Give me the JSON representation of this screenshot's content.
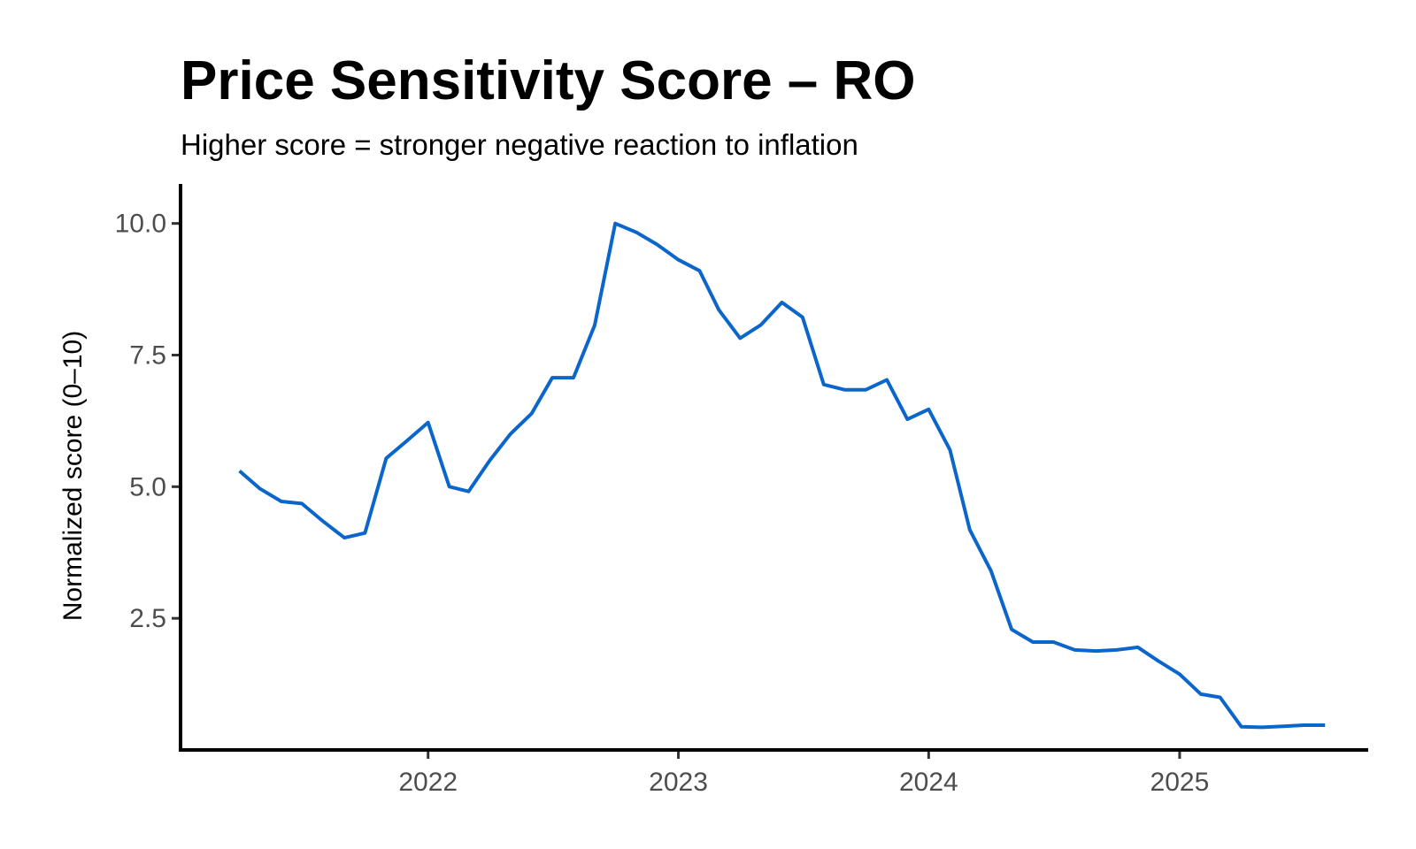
{
  "chart_data": {
    "type": "line",
    "title": "Price Sensitivity Score – RO",
    "subtitle": "Higher score = stronger negative reaction to inflation",
    "xlabel": "",
    "ylabel": "Normalized score (0–10)",
    "x_ticks": [
      "2022-01-01",
      "2023-01-01",
      "2024-01-01",
      "2025-01-01"
    ],
    "x_tick_labels": [
      "2022",
      "2023",
      "2024",
      "2025"
    ],
    "xlim": [
      "2021-01-05",
      "2025-10-03"
    ],
    "y_ticks": [
      2.5,
      5.0,
      7.5,
      10.0
    ],
    "y_tick_labels": [
      "2.5",
      "5.0",
      "7.5",
      "10.0"
    ],
    "ylim": [
      0.0,
      10.75
    ],
    "grid": false,
    "legend": "none",
    "series": [
      {
        "color": "#0b66cc",
        "x": [
          "2021-04-01",
          "2021-05-01",
          "2021-06-01",
          "2021-07-01",
          "2021-08-01",
          "2021-09-01",
          "2021-10-01",
          "2021-11-01",
          "2021-12-01",
          "2022-01-01",
          "2022-02-01",
          "2022-03-01",
          "2022-04-01",
          "2022-05-01",
          "2022-06-01",
          "2022-07-01",
          "2022-08-01",
          "2022-09-01",
          "2022-10-01",
          "2022-11-01",
          "2022-12-01",
          "2023-01-01",
          "2023-02-01",
          "2023-03-01",
          "2023-04-01",
          "2023-05-01",
          "2023-06-01",
          "2023-07-01",
          "2023-08-01",
          "2023-09-01",
          "2023-10-01",
          "2023-11-01",
          "2023-12-01",
          "2024-01-01",
          "2024-02-01",
          "2024-03-01",
          "2024-04-01",
          "2024-05-01",
          "2024-06-01",
          "2024-07-01",
          "2024-08-01",
          "2024-09-01",
          "2024-10-01",
          "2024-11-01",
          "2024-12-01",
          "2025-01-01",
          "2025-02-01",
          "2025-03-01",
          "2025-04-01",
          "2025-05-01",
          "2025-06-01",
          "2025-07-01",
          "2025-08-01"
        ],
        "y": [
          5.3,
          4.96,
          4.72,
          4.68,
          4.34,
          4.03,
          4.12,
          5.54,
          5.87,
          6.22,
          5.0,
          4.91,
          5.5,
          6.0,
          6.39,
          7.07,
          7.07,
          8.07,
          10.0,
          9.83,
          9.6,
          9.31,
          9.1,
          8.36,
          7.82,
          8.07,
          8.5,
          8.22,
          6.94,
          6.84,
          6.84,
          7.03,
          6.28,
          6.47,
          5.7,
          4.18,
          3.4,
          2.29,
          2.05,
          2.05,
          1.9,
          1.88,
          1.9,
          1.95,
          1.69,
          1.44,
          1.06,
          1.0,
          0.44,
          0.43,
          0.45,
          0.47,
          0.47
        ]
      }
    ]
  }
}
